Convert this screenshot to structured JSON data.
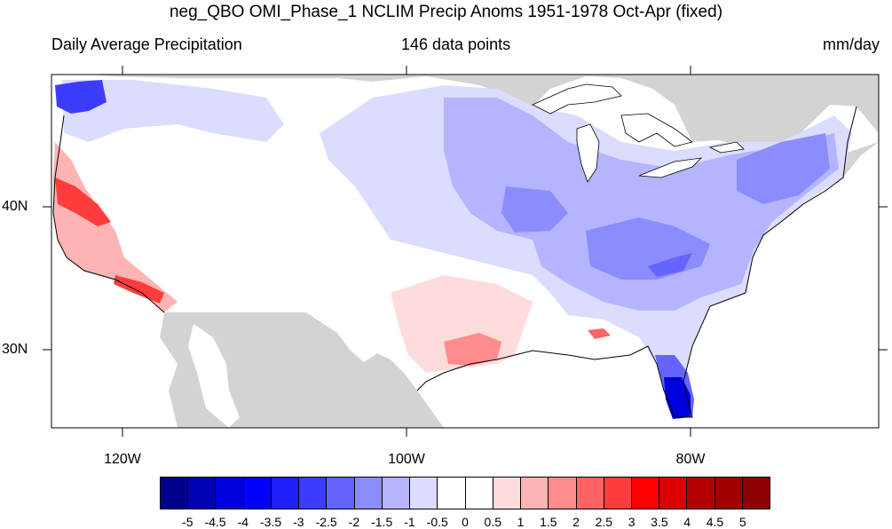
{
  "title": "neg_QBO OMI_Phase_1 NCLIM Precip Anoms 1951-1978 Oct-Apr (fixed)",
  "subtitle_left": "Daily Average Precipitation",
  "subtitle_center": "146 data points",
  "subtitle_right": "mm/day",
  "lat_labels": [
    "40N",
    "30N"
  ],
  "lon_labels": [
    "120W",
    "100W",
    "80W"
  ],
  "colorbar": {
    "colors": [
      "#00008b",
      "#0000b4",
      "#0000dc",
      "#0000ff",
      "#1e1eff",
      "#3c3cff",
      "#6464ff",
      "#8c8cff",
      "#b4b4ff",
      "#dcdcff",
      "#ffffff",
      "#ffffff",
      "#ffdcdc",
      "#ffb4b4",
      "#ff8c8c",
      "#ff6464",
      "#ff3c3c",
      "#ff0000",
      "#dc0000",
      "#b40000",
      "#a00000",
      "#8b0000"
    ],
    "labels": [
      "-5",
      "-4.5",
      "-4",
      "-3.5",
      "-3",
      "-2.5",
      "-2",
      "-1.5",
      "-1",
      "-0.5",
      "0",
      "0.5",
      "1",
      "1.5",
      "2",
      "2.5",
      "3",
      "3.5",
      "4",
      "4.5",
      "5"
    ]
  },
  "map": {
    "land_color": "#d3d3d3",
    "ocean_color": "#ffffff",
    "features": [
      {
        "name": "florida-strong-negative",
        "color": "#0000dc"
      },
      {
        "name": "pacific-northwest-negative",
        "color": "#3c3cff"
      },
      {
        "name": "california-positive",
        "color": "#ff3c3c"
      },
      {
        "name": "texas-positive",
        "color": "#ff8c8c"
      },
      {
        "name": "ohio-valley-negative",
        "color": "#8c8cff"
      }
    ]
  }
}
